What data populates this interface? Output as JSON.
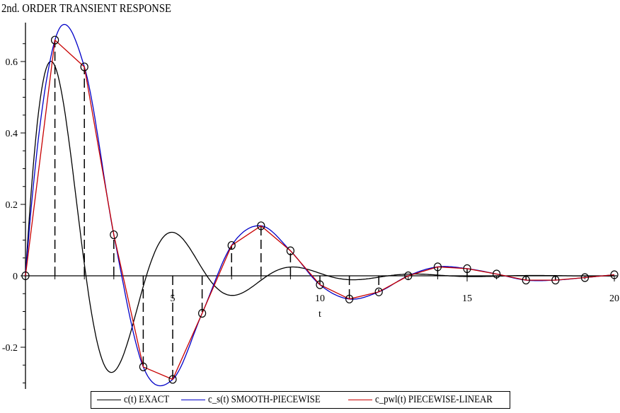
{
  "chart_data": {
    "type": "line",
    "title": "2nd. ORDER TRANSIENT RESPONSE",
    "xlabel": "t",
    "ylabel": "",
    "xlim": [
      0,
      20
    ],
    "ylim": [
      -0.32,
      0.7
    ],
    "x_ticks": [
      5,
      10,
      15,
      20
    ],
    "x_tick_labels": [
      "5",
      "10",
      "15",
      "20"
    ],
    "y_ticks": [
      -0.2,
      0,
      0.2,
      0.4,
      0.6
    ],
    "y_tick_labels": [
      "-0.2",
      "0",
      "0.2",
      "0.4",
      "0.6"
    ],
    "legend_position": "bottom",
    "grid": false,
    "sample_points": {
      "t": [
        0,
        1,
        2,
        3,
        4,
        5,
        6,
        7,
        8,
        9,
        10,
        11,
        12,
        13,
        14,
        15,
        16,
        17,
        18,
        19,
        20
      ],
      "y": [
        0,
        0.66,
        0.585,
        0.115,
        -0.255,
        -0.29,
        -0.105,
        0.085,
        0.14,
        0.07,
        -0.025,
        -0.065,
        -0.045,
        0.0,
        0.025,
        0.02,
        0.005,
        -0.012,
        -0.012,
        -0.005,
        0.003
      ]
    },
    "series": [
      {
        "name": "c(t) EXACT",
        "color": "#000000",
        "kind": "exact"
      },
      {
        "name": "c_s(t) SMOOTH-PIECEWISE",
        "color": "#0000c8",
        "kind": "smooth"
      },
      {
        "name": "c_pwl(t) PIECEWISE-LINEAR",
        "color": "#c80000",
        "kind": "linear"
      }
    ]
  }
}
